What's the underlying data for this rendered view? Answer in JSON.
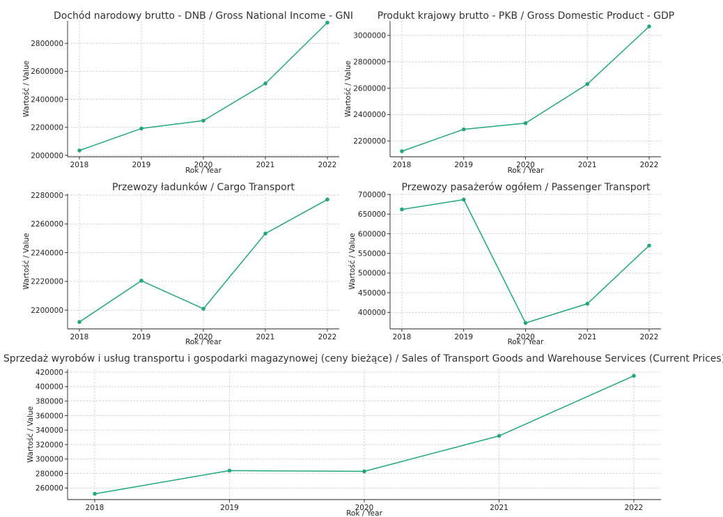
{
  "colors": {
    "series": "#21a67e"
  },
  "chart_data": [
    {
      "type": "line",
      "title": "Dochód narodowy brutto - DNB / Gross National Income - GNI",
      "xlabel": "Rok / Year",
      "ylabel": "Wartość / Value",
      "x": [
        2018,
        2019,
        2020,
        2021,
        2022
      ],
      "values": [
        2035000,
        2192000,
        2248000,
        2513000,
        2948000
      ],
      "ylim": [
        1990000,
        2960000
      ],
      "yticks": [
        2000000,
        2200000,
        2400000,
        2600000,
        2800000
      ],
      "ytick_labels": [
        "2000000",
        "2200000",
        "2400000",
        "2600000",
        "2800000"
      ],
      "xticks": [
        2018,
        2019,
        2020,
        2021,
        2022
      ],
      "xtick_labels": [
        "2018",
        "2019",
        "2020",
        "2021",
        "2022"
      ],
      "grid": true
    },
    {
      "type": "line",
      "title": "Produkt krajowy brutto - PKB / Gross Domestic Product - GDP",
      "xlabel": "Rok / Year",
      "ylabel": "Wartość / Value",
      "x": [
        2018,
        2019,
        2020,
        2021,
        2022
      ],
      "values": [
        2122000,
        2288000,
        2335000,
        2631000,
        3068000
      ],
      "ylim": [
        2080000,
        3110000
      ],
      "yticks": [
        2200000,
        2400000,
        2600000,
        2800000,
        3000000
      ],
      "ytick_labels": [
        "2200000",
        "2400000",
        "2600000",
        "2800000",
        "3000000"
      ],
      "xticks": [
        2018,
        2019,
        2020,
        2021,
        2022
      ],
      "xtick_labels": [
        "2018",
        "2019",
        "2020",
        "2021",
        "2022"
      ],
      "grid": true
    },
    {
      "type": "line",
      "title": "Przewozy ładunków / Cargo Transport",
      "xlabel": "Rok / Year",
      "ylabel": "Wartość / Value",
      "x": [
        2018,
        2019,
        2020,
        2021,
        2022
      ],
      "values": [
        2191800,
        2220500,
        2201000,
        2253300,
        2277000
      ],
      "ylim": [
        2187000,
        2281000
      ],
      "yticks": [
        2200000,
        2220000,
        2240000,
        2260000,
        2280000
      ],
      "ytick_labels": [
        "2200000",
        "2220000",
        "2240000",
        "2260000",
        "2280000"
      ],
      "xticks": [
        2018,
        2019,
        2020,
        2021,
        2022
      ],
      "xtick_labels": [
        "2018",
        "2019",
        "2020",
        "2021",
        "2022"
      ],
      "grid": true
    },
    {
      "type": "line",
      "title": "Przewozy pasażerów ogółem / Passenger Transport",
      "xlabel": "Rok / Year",
      "ylabel": "Wartość / Value",
      "x": [
        2018,
        2019,
        2020,
        2021,
        2022
      ],
      "values": [
        662000,
        687000,
        373000,
        422000,
        570000
      ],
      "ylim": [
        358000,
        702000
      ],
      "yticks": [
        400000,
        450000,
        500000,
        550000,
        600000,
        650000,
        700000
      ],
      "ytick_labels": [
        "400000",
        "450000",
        "500000",
        "550000",
        "600000",
        "650000",
        "700000"
      ],
      "xticks": [
        2018,
        2019,
        2020,
        2021,
        2022
      ],
      "xtick_labels": [
        "2018",
        "2019",
        "2020",
        "2021",
        "2022"
      ],
      "grid": true
    },
    {
      "type": "line",
      "title": "Sprzedaż wyrobów i usług transportu i gospodarki magazynowej (ceny bieżące) / Sales of Transport Goods and Warehouse Services (Current Prices)",
      "xlabel": "Rok / Year",
      "ylabel": "Wartość / Value",
      "x": [
        2018,
        2019,
        2020,
        2021,
        2022
      ],
      "values": [
        252000,
        284000,
        283000,
        332000,
        415000
      ],
      "ylim": [
        244000,
        424000
      ],
      "yticks": [
        260000,
        280000,
        300000,
        320000,
        340000,
        360000,
        380000,
        400000,
        420000
      ],
      "ytick_labels": [
        "260000",
        "280000",
        "300000",
        "320000",
        "340000",
        "360000",
        "380000",
        "400000",
        "420000"
      ],
      "xticks": [
        2018,
        2019,
        2020,
        2021,
        2022
      ],
      "xtick_labels": [
        "2018",
        "2019",
        "2020",
        "2021",
        "2022"
      ],
      "grid": true
    }
  ]
}
